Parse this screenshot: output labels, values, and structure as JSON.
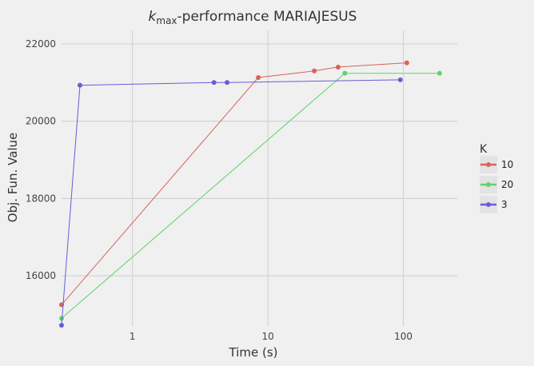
{
  "chart_data": {
    "type": "line",
    "title_prefix": "k",
    "title_sub": "max",
    "title_suffix": "-performance MARIAJESUS",
    "xlabel": "Time (s)",
    "ylabel": "Obj. Fun. Value",
    "x_scale": "log",
    "xlim": [
      0.3,
      250
    ],
    "ylim": [
      14700,
      22350
    ],
    "x_ticks": [
      {
        "value": 1,
        "label": "1"
      },
      {
        "value": 10,
        "label": "10"
      },
      {
        "value": 100,
        "label": "100"
      }
    ],
    "y_ticks": [
      {
        "value": 16000,
        "label": "16000"
      },
      {
        "value": 18000,
        "label": "18000"
      },
      {
        "value": 20000,
        "label": "20000"
      },
      {
        "value": 22000,
        "label": "22000"
      }
    ],
    "grid": true,
    "legend_title": "K",
    "legend_position": "right",
    "series": [
      {
        "name": "10",
        "color": "#d9625a",
        "x": [
          0.3,
          8.5,
          22,
          33,
          106
        ],
        "y": [
          15250,
          21130,
          21300,
          21400,
          21510
        ]
      },
      {
        "name": "20",
        "color": "#5cd468",
        "x": [
          0.3,
          37,
          185
        ],
        "y": [
          14900,
          21240,
          21240
        ]
      },
      {
        "name": "3",
        "color": "#6a5bd9",
        "x": [
          0.3,
          0.41,
          4,
          5,
          95
        ],
        "y": [
          14720,
          20930,
          21000,
          21000,
          21070
        ]
      }
    ]
  }
}
